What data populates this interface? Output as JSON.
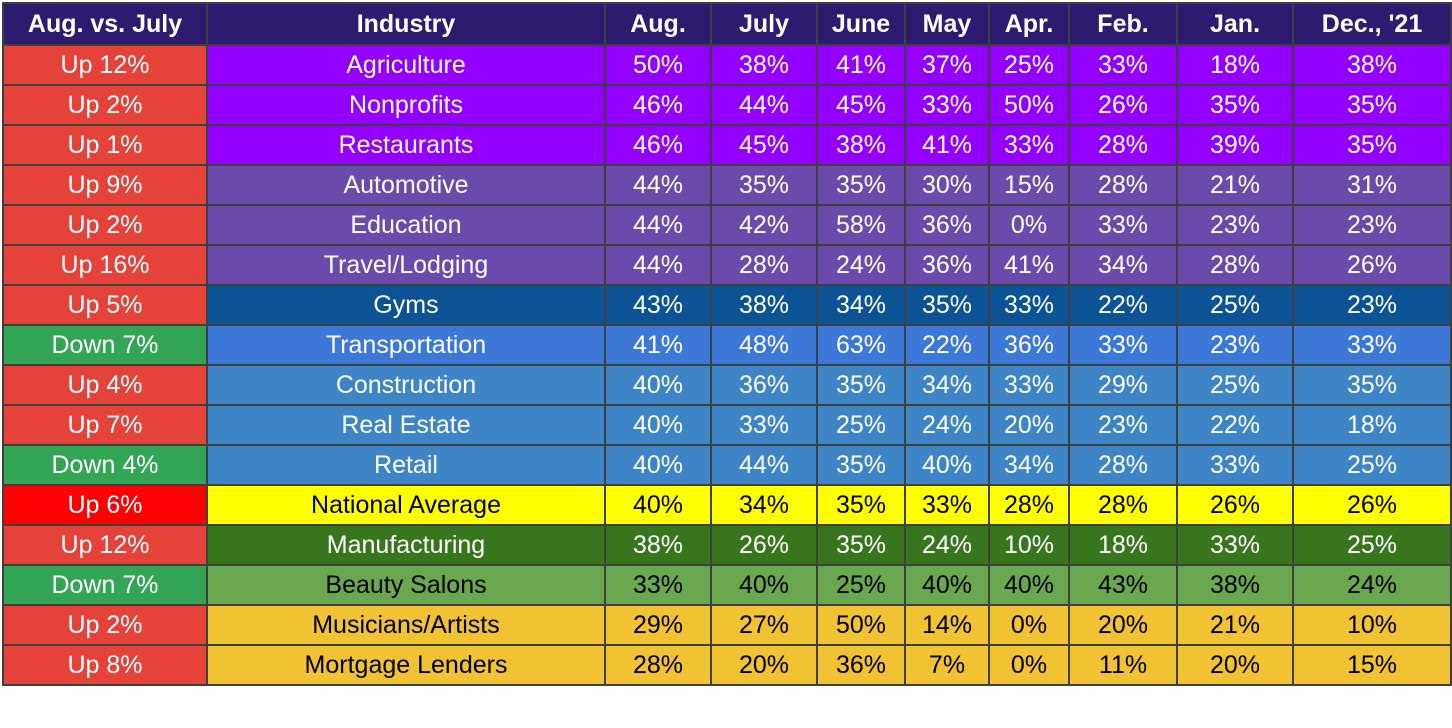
{
  "chart_data": {
    "type": "table",
    "columns": [
      "Aug. vs. July",
      "Industry",
      "Aug.",
      "July",
      "June",
      "May",
      "Apr.",
      "Feb.",
      "Jan.",
      "Dec., '21"
    ],
    "rows": [
      {
        "change": "Up 12%",
        "industry": "Agriculture",
        "values": [
          "50%",
          "38%",
          "41%",
          "37%",
          "25%",
          "33%",
          "18%",
          "38%"
        ],
        "change_color": "#e5433a",
        "row_color": "#9400ff",
        "text_color": "#ffffff"
      },
      {
        "change": "Up 2%",
        "industry": "Nonprofits",
        "values": [
          "46%",
          "44%",
          "45%",
          "33%",
          "50%",
          "26%",
          "35%",
          "35%"
        ],
        "change_color": "#e5433a",
        "row_color": "#9400ff",
        "text_color": "#ffffff"
      },
      {
        "change": "Up 1%",
        "industry": "Restaurants",
        "values": [
          "46%",
          "45%",
          "38%",
          "41%",
          "33%",
          "28%",
          "39%",
          "35%"
        ],
        "change_color": "#e5433a",
        "row_color": "#9400ff",
        "text_color": "#ffffff"
      },
      {
        "change": "Up 9%",
        "industry": "Automotive",
        "values": [
          "44%",
          "35%",
          "35%",
          "30%",
          "15%",
          "28%",
          "21%",
          "31%"
        ],
        "change_color": "#e5433a",
        "row_color": "#6a4aaa",
        "text_color": "#ffffff"
      },
      {
        "change": "Up 2%",
        "industry": "Education",
        "values": [
          "44%",
          "42%",
          "58%",
          "36%",
          "0%",
          "33%",
          "23%",
          "23%"
        ],
        "change_color": "#e5433a",
        "row_color": "#6a4aaa",
        "text_color": "#ffffff"
      },
      {
        "change": "Up 16%",
        "industry": "Travel/Lodging",
        "values": [
          "44%",
          "28%",
          "24%",
          "36%",
          "41%",
          "34%",
          "28%",
          "26%"
        ],
        "change_color": "#e5433a",
        "row_color": "#6a4aaa",
        "text_color": "#ffffff"
      },
      {
        "change": "Up 5%",
        "industry": "Gyms",
        "values": [
          "43%",
          "38%",
          "34%",
          "35%",
          "33%",
          "22%",
          "25%",
          "23%"
        ],
        "change_color": "#e5433a",
        "row_color": "#0b5394",
        "text_color": "#ffffff"
      },
      {
        "change": "Down 7%",
        "industry": "Transportation",
        "values": [
          "41%",
          "48%",
          "63%",
          "22%",
          "36%",
          "33%",
          "23%",
          "33%"
        ],
        "change_color": "#33a656",
        "row_color": "#3c78d8",
        "text_color": "#ffffff"
      },
      {
        "change": "Up 4%",
        "industry": "Construction",
        "values": [
          "40%",
          "36%",
          "35%",
          "34%",
          "33%",
          "29%",
          "25%",
          "35%"
        ],
        "change_color": "#e5433a",
        "row_color": "#3d85c6",
        "text_color": "#ffffff"
      },
      {
        "change": "Up 7%",
        "industry": "Real Estate",
        "values": [
          "40%",
          "33%",
          "25%",
          "24%",
          "20%",
          "23%",
          "22%",
          "18%"
        ],
        "change_color": "#e5433a",
        "row_color": "#3d85c6",
        "text_color": "#ffffff"
      },
      {
        "change": "Down 4%",
        "industry": "Retail",
        "values": [
          "40%",
          "44%",
          "35%",
          "40%",
          "34%",
          "28%",
          "33%",
          "25%"
        ],
        "change_color": "#33a656",
        "row_color": "#3d85c6",
        "text_color": "#ffffff"
      },
      {
        "change": "Up 6%",
        "industry": "National Average",
        "values": [
          "40%",
          "34%",
          "35%",
          "33%",
          "28%",
          "28%",
          "26%",
          "26%"
        ],
        "change_color": "#ff0000",
        "row_color": "#ffff00",
        "text_color": "#000000"
      },
      {
        "change": "Up 12%",
        "industry": "Manufacturing",
        "values": [
          "38%",
          "26%",
          "35%",
          "24%",
          "10%",
          "18%",
          "33%",
          "25%"
        ],
        "change_color": "#e5433a",
        "row_color": "#38761d",
        "text_color": "#ffffff"
      },
      {
        "change": "Down 7%",
        "industry": "Beauty Salons",
        "values": [
          "33%",
          "40%",
          "25%",
          "40%",
          "40%",
          "43%",
          "38%",
          "24%"
        ],
        "change_color": "#33a656",
        "row_color": "#6aa84f",
        "text_color": "#000000"
      },
      {
        "change": "Up 2%",
        "industry": "Musicians/Artists",
        "values": [
          "29%",
          "27%",
          "50%",
          "14%",
          "0%",
          "20%",
          "21%",
          "10%"
        ],
        "change_color": "#e5433a",
        "row_color": "#f1c232",
        "text_color": "#000000"
      },
      {
        "change": "Up 8%",
        "industry": "Mortgage Lenders",
        "values": [
          "28%",
          "20%",
          "36%",
          "7%",
          "0%",
          "11%",
          "20%",
          "15%"
        ],
        "change_color": "#e5433a",
        "row_color": "#f1c232",
        "text_color": "#000000"
      }
    ]
  },
  "colors": {
    "header_bg": "#2c1b6e",
    "border": "#3f3f3f"
  }
}
